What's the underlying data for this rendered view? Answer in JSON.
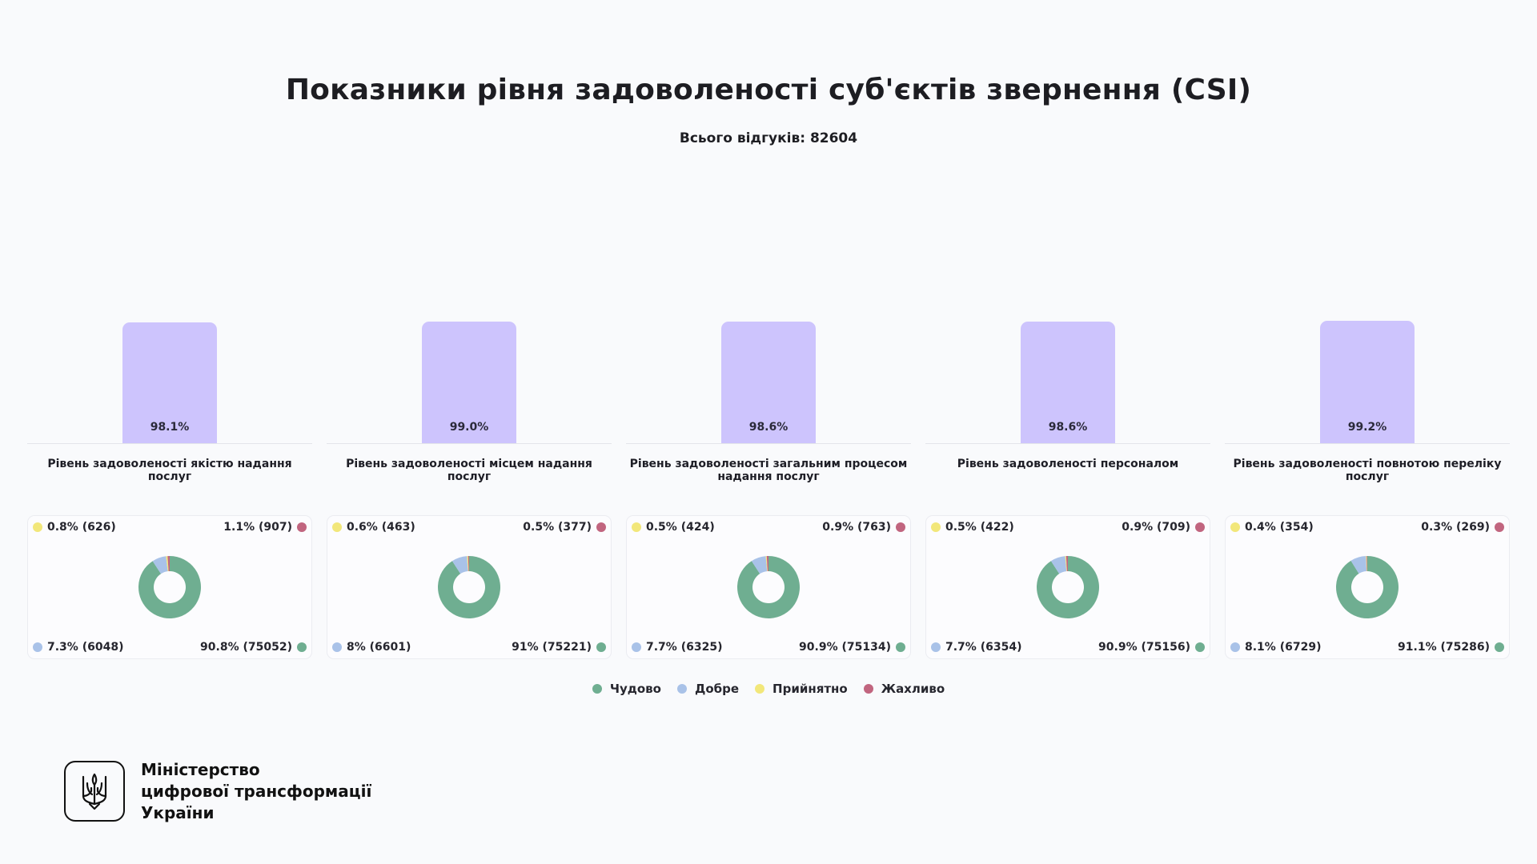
{
  "header": {
    "title": "Показники рівня задоволеності суб'єктів звернення (CSI)",
    "subtitle": "Всього відгуків: 82604"
  },
  "colors": {
    "bar": "#cdc4fd",
    "great": "#6fae91",
    "good": "#a9c2e8",
    "acceptable": "#f2e77a",
    "terrible": "#c1657f"
  },
  "legend": [
    {
      "key": "great",
      "label": "Чудово"
    },
    {
      "key": "good",
      "label": "Добре"
    },
    {
      "key": "acceptable",
      "label": "Прийнятно"
    },
    {
      "key": "terrible",
      "label": "Жахливо"
    }
  ],
  "chart_data": {
    "type": "bar",
    "ylim": [
      0,
      100
    ],
    "categories": [
      "Рівень задоволеності якістю надання послуг",
      "Рівень задоволеності місцем надання послуг",
      "Рівень задоволеності загальним процесом надання послуг",
      "Рівень задоволеності персоналом",
      "Рівень задоволеності повнотою переліку послуг"
    ],
    "values": [
      98.1,
      99.0,
      98.6,
      98.6,
      99.2
    ],
    "value_labels": [
      "98.1%",
      "99.0%",
      "98.6%",
      "98.6%",
      "99.2%"
    ],
    "breakdowns": [
      {
        "great": {
          "pct": 90.8,
          "count": 75052,
          "label": "90.8% (75052)"
        },
        "good": {
          "pct": 7.3,
          "count": 6048,
          "label": "7.3% (6048)"
        },
        "acceptable": {
          "pct": 0.8,
          "count": 626,
          "label": "0.8% (626)"
        },
        "terrible": {
          "pct": 1.1,
          "count": 907,
          "label": "1.1% (907)"
        }
      },
      {
        "great": {
          "pct": 91,
          "count": 75221,
          "label": "91% (75221)"
        },
        "good": {
          "pct": 8,
          "count": 6601,
          "label": "8% (6601)"
        },
        "acceptable": {
          "pct": 0.6,
          "count": 463,
          "label": "0.6% (463)"
        },
        "terrible": {
          "pct": 0.5,
          "count": 377,
          "label": "0.5% (377)"
        }
      },
      {
        "great": {
          "pct": 90.9,
          "count": 75134,
          "label": "90.9% (75134)"
        },
        "good": {
          "pct": 7.7,
          "count": 6325,
          "label": "7.7% (6325)"
        },
        "acceptable": {
          "pct": 0.5,
          "count": 424,
          "label": "0.5% (424)"
        },
        "terrible": {
          "pct": 0.9,
          "count": 763,
          "label": "0.9% (763)"
        }
      },
      {
        "great": {
          "pct": 90.9,
          "count": 75156,
          "label": "90.9% (75156)"
        },
        "good": {
          "pct": 7.7,
          "count": 6354,
          "label": "7.7% (6354)"
        },
        "acceptable": {
          "pct": 0.5,
          "count": 422,
          "label": "0.5% (422)"
        },
        "terrible": {
          "pct": 0.9,
          "count": 709,
          "label": "0.9% (709)"
        }
      },
      {
        "great": {
          "pct": 91.1,
          "count": 75286,
          "label": "91.1% (75286)"
        },
        "good": {
          "pct": 8.1,
          "count": 6729,
          "label": "8.1% (6729)"
        },
        "acceptable": {
          "pct": 0.4,
          "count": 354,
          "label": "0.4% (354)"
        },
        "terrible": {
          "pct": 0.3,
          "count": 269,
          "label": "0.3% (269)"
        }
      }
    ]
  },
  "footer": {
    "logo_icon": "trident-icon",
    "org_lines": [
      "Міністерство",
      "цифрової трансформації",
      "України"
    ]
  }
}
